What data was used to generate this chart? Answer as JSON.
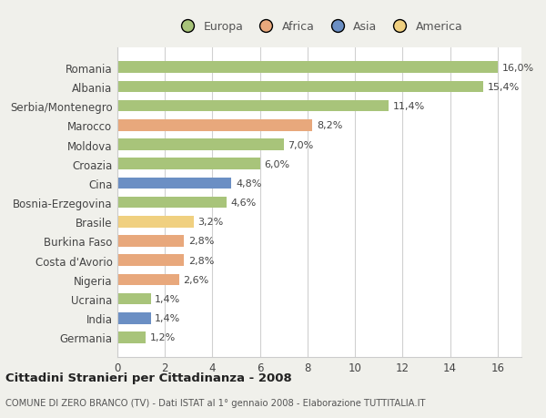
{
  "categories": [
    "Romania",
    "Albania",
    "Serbia/Montenegro",
    "Marocco",
    "Moldova",
    "Croazia",
    "Cina",
    "Bosnia-Erzegovina",
    "Brasile",
    "Burkina Faso",
    "Costa d'Avorio",
    "Nigeria",
    "Ucraina",
    "India",
    "Germania"
  ],
  "values": [
    16.0,
    15.4,
    11.4,
    8.2,
    7.0,
    6.0,
    4.8,
    4.6,
    3.2,
    2.8,
    2.8,
    2.6,
    1.4,
    1.4,
    1.2
  ],
  "labels": [
    "16,0%",
    "15,4%",
    "11,4%",
    "8,2%",
    "7,0%",
    "6,0%",
    "4,8%",
    "4,6%",
    "3,2%",
    "2,8%",
    "2,8%",
    "2,6%",
    "1,4%",
    "1,4%",
    "1,2%"
  ],
  "colors": [
    "#a8c47a",
    "#a8c47a",
    "#a8c47a",
    "#e8a87c",
    "#a8c47a",
    "#a8c47a",
    "#6b8fc4",
    "#a8c47a",
    "#f0d080",
    "#e8a87c",
    "#e8a87c",
    "#e8a87c",
    "#a8c47a",
    "#6b8fc4",
    "#a8c47a"
  ],
  "legend_labels": [
    "Europa",
    "Africa",
    "Asia",
    "America"
  ],
  "legend_colors": [
    "#a8c47a",
    "#e8a87c",
    "#6b8fc4",
    "#f0d080"
  ],
  "title1": "Cittadini Stranieri per Cittadinanza - 2008",
  "title2": "COMUNE DI ZERO BRANCO (TV) - Dati ISTAT al 1° gennaio 2008 - Elaborazione TUTTITALIA.IT",
  "xlim": [
    0,
    17
  ],
  "xticks": [
    0,
    2,
    4,
    6,
    8,
    10,
    12,
    14,
    16
  ],
  "background_color": "#f0f0eb",
  "plot_bg": "#ffffff",
  "bar_height": 0.6
}
